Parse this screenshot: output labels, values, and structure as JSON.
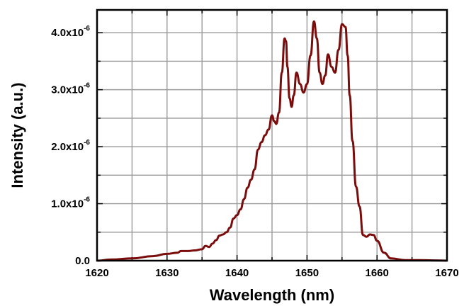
{
  "chart_data": {
    "type": "line",
    "title": "",
    "xlabel": "Wavelength (nm)",
    "ylabel": "Intensity (a.u.)",
    "xlim": [
      1620,
      1670
    ],
    "ylim": [
      0,
      4.4e-06
    ],
    "grid": true,
    "line_color": "#7a0c0c",
    "x_ticks": [
      {
        "value": 1620,
        "label": "1620"
      },
      {
        "value": 1630,
        "label": "1630"
      },
      {
        "value": 1640,
        "label": "1640"
      },
      {
        "value": 1650,
        "label": "1650"
      },
      {
        "value": 1660,
        "label": "1660"
      },
      {
        "value": 1670,
        "label": "1670"
      }
    ],
    "y_ticks": [
      {
        "value": 0,
        "mantissa": "0.0",
        "exponent": ""
      },
      {
        "value": 1e-06,
        "mantissa": "1.0x10",
        "exponent": "-6"
      },
      {
        "value": 2e-06,
        "mantissa": "2.0x10",
        "exponent": "-6"
      },
      {
        "value": 3e-06,
        "mantissa": "3.0x10",
        "exponent": "-6"
      },
      {
        "value": 4e-06,
        "mantissa": "4.0x10",
        "exponent": "-6"
      }
    ],
    "series": [
      {
        "x": [
          1620,
          1622,
          1625,
          1628,
          1630,
          1631.5,
          1632,
          1633,
          1634,
          1635,
          1635.5,
          1636,
          1636.5,
          1637,
          1637.5,
          1638,
          1638.5,
          1639,
          1639.5,
          1640,
          1640.5,
          1641,
          1641.5,
          1642,
          1642.5,
          1643,
          1643.5,
          1644,
          1644.5,
          1645,
          1645.3,
          1645.6,
          1646,
          1646.4,
          1646.8,
          1647,
          1647.2,
          1647.5,
          1647.8,
          1648.1,
          1648.5,
          1649,
          1649.5,
          1650,
          1650.5,
          1651,
          1651.4,
          1651.8,
          1652.2,
          1652.6,
          1653,
          1653.5,
          1654,
          1654.5,
          1655,
          1655.5,
          1655.8,
          1656.1,
          1656.5,
          1657,
          1657.5,
          1658,
          1658.5,
          1659,
          1659.5,
          1660,
          1661,
          1662,
          1664,
          1666,
          1668,
          1670
        ],
        "y": [
          0.0,
          2e-08,
          4e-08,
          8e-08,
          1.2e-07,
          1.4e-07,
          1.7e-07,
          1.7e-07,
          1.8e-07,
          2e-07,
          2.6e-07,
          2.4e-07,
          3e-07,
          3.6e-07,
          4.4e-07,
          4.6e-07,
          5e-07,
          5.8e-07,
          7.4e-07,
          8e-07,
          9e-07,
          1.08e-06,
          1.28e-06,
          1.42e-06,
          1.6e-06,
          1.95e-06,
          2.08e-06,
          2.2e-06,
          2.3e-06,
          2.55e-06,
          2.45e-06,
          2.4e-06,
          2.6e-06,
          3.3e-06,
          3.9e-06,
          3.85e-06,
          3.4e-06,
          2.85e-06,
          2.7e-06,
          2.9e-06,
          3.3e-06,
          3.1e-06,
          2.95e-06,
          3.1e-06,
          3.6e-06,
          4.2e-06,
          3.9e-06,
          3.3e-06,
          3.1e-06,
          3.25e-06,
          3.62e-06,
          3.4e-06,
          3.3e-06,
          3.7e-06,
          4.15e-06,
          4.1e-06,
          3.6e-06,
          2.9e-06,
          2.1e-06,
          1.3e-06,
          9.5e-07,
          4.5e-07,
          4.2e-07,
          4.6e-07,
          4.5e-07,
          3.5e-07,
          1.4e-07,
          4e-08,
          1e-08,
          1e-08,
          5e-09,
          0.0
        ]
      }
    ]
  }
}
